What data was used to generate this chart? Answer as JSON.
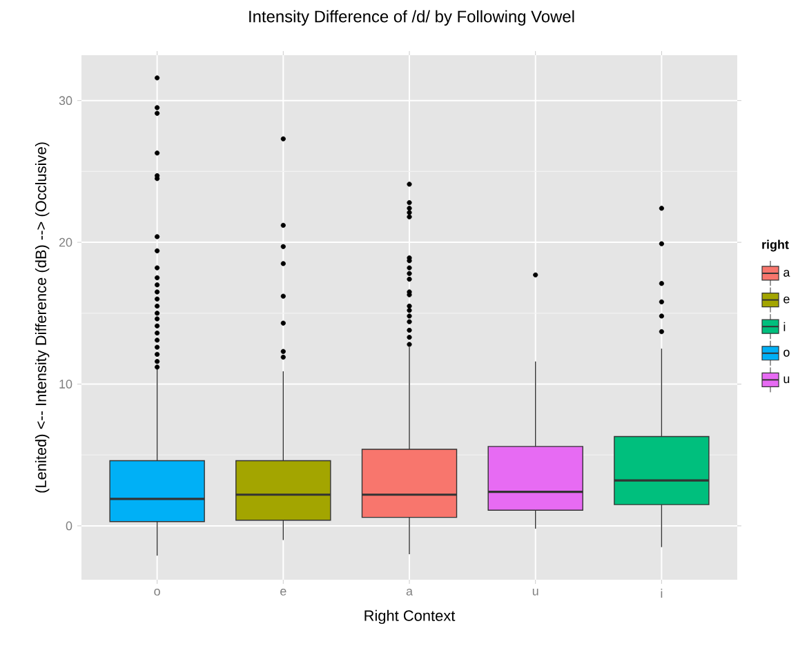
{
  "chart_data": {
    "type": "box",
    "title": "Intensity Difference of /d/ by Following Vowel",
    "xlabel": "Right Context",
    "ylabel": "(Lenited) <-- Intensity Difference (dB) --> (Occlusive)",
    "legend_title": "right",
    "legend": "right",
    "grid": true,
    "categories": [
      "o",
      "e",
      "a",
      "u",
      "i"
    ],
    "ylim": [
      -3.8,
      33.2
    ],
    "yticks": [
      0,
      10,
      20,
      30
    ],
    "series": [
      {
        "name": "a",
        "color": "#f8766d",
        "boxes": [
          null,
          null,
          {
            "low": -2.0,
            "q1": 0.6,
            "median": 2.2,
            "q3": 5.4,
            "high": 12.6,
            "outliers": [
              24.1,
              22.8,
              22.4,
              22.1,
              21.8,
              18.9,
              18.7,
              18.2,
              17.8,
              17.4,
              16.5,
              16.3,
              15.5,
              15.2,
              14.8,
              14.4,
              13.8,
              13.3,
              12.8
            ]
          },
          null,
          null
        ]
      },
      {
        "name": "e",
        "color": "#a3a500",
        "boxes": [
          null,
          {
            "low": -1.0,
            "q1": 0.4,
            "median": 2.2,
            "q3": 4.6,
            "high": 10.9,
            "outliers": [
              27.3,
              21.2,
              19.7,
              18.5,
              16.2,
              14.3,
              12.3,
              11.9
            ]
          },
          null,
          null,
          null
        ]
      },
      {
        "name": "i",
        "color": "#00bf7d",
        "boxes": [
          null,
          null,
          null,
          null,
          {
            "low": -1.5,
            "q1": 1.5,
            "median": 3.2,
            "q3": 6.3,
            "high": 12.5,
            "outliers": [
              22.4,
              19.9,
              17.1,
              15.8,
              14.8,
              13.7
            ]
          }
        ]
      },
      {
        "name": "o",
        "color": "#00b0f6",
        "boxes": [
          {
            "low": -2.1,
            "q1": 0.3,
            "median": 1.9,
            "q3": 4.6,
            "high": 11.1,
            "outliers": [
              31.6,
              29.5,
              29.1,
              26.3,
              24.7,
              24.5,
              20.4,
              19.4,
              18.2,
              17.5,
              17.0,
              16.5,
              16.0,
              15.5,
              15.0,
              14.6,
              14.1,
              13.6,
              13.1,
              12.6,
              12.1,
              11.6,
              11.2
            ]
          },
          null,
          null,
          null,
          null
        ]
      },
      {
        "name": "u",
        "color": "#e76bf3",
        "boxes": [
          null,
          null,
          null,
          {
            "low": -0.2,
            "q1": 1.1,
            "median": 2.4,
            "q3": 5.6,
            "high": 11.6,
            "outliers": [
              17.7
            ]
          },
          null
        ]
      }
    ]
  }
}
